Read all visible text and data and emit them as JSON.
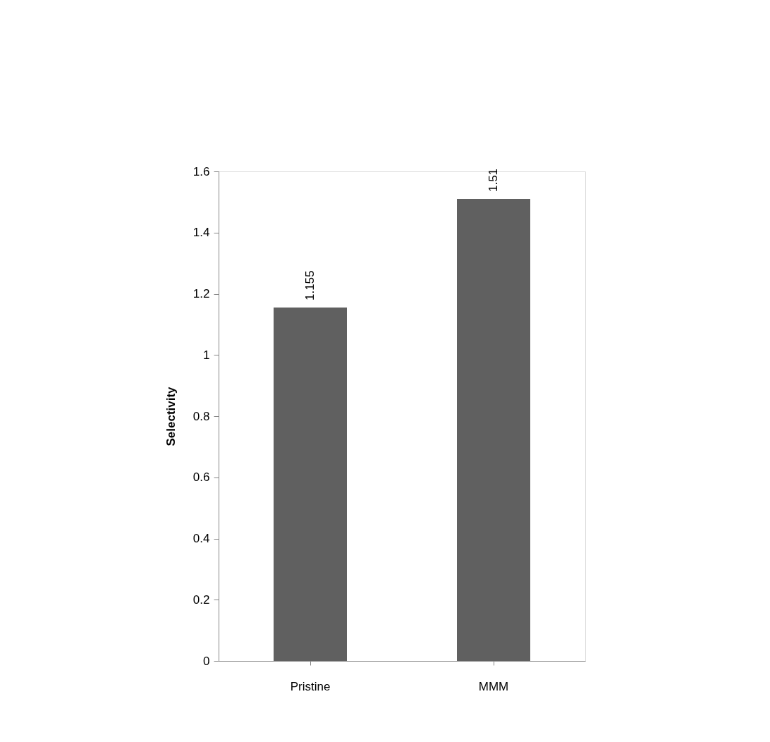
{
  "chart_data": {
    "type": "bar",
    "ylabel": "Selectivity",
    "categories": [
      "Pristine",
      "MMM"
    ],
    "values": [
      1.155,
      1.51
    ],
    "color": "#606060",
    "ylim": [
      0,
      1.6
    ],
    "yticks": [
      0,
      0.2,
      0.4,
      0.6,
      0.8,
      1,
      1.2,
      1.4,
      1.6
    ],
    "grid": false,
    "data_labels": true
  }
}
